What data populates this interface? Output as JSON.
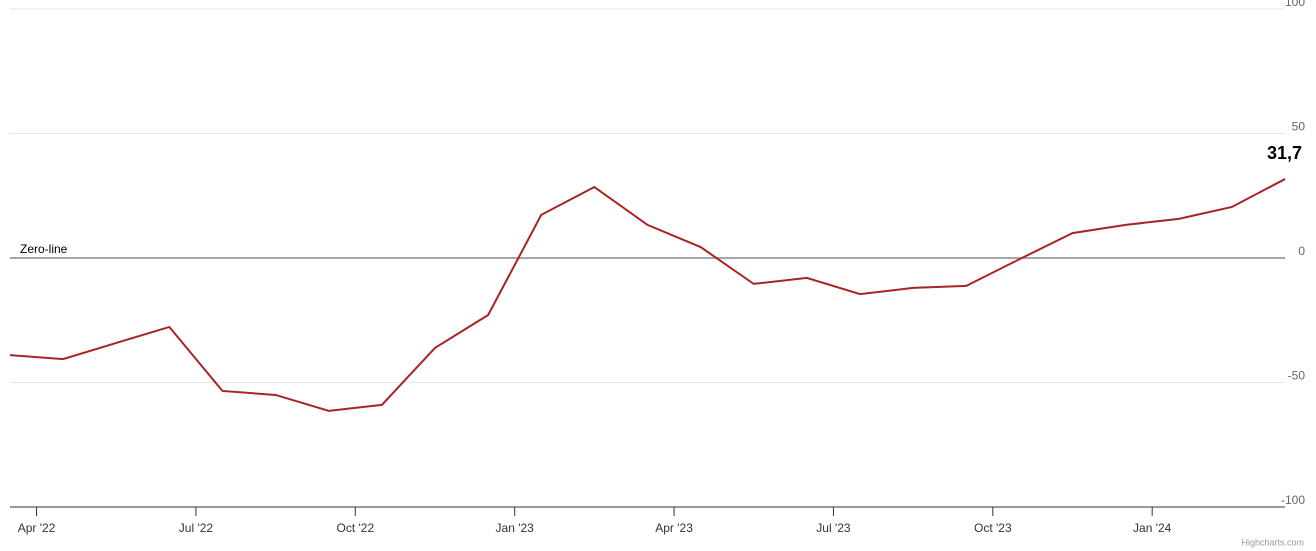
{
  "chart_data": {
    "type": "line",
    "x": [
      "2022-03",
      "2022-04",
      "2022-05",
      "2022-06",
      "2022-07",
      "2022-08",
      "2022-09",
      "2022-10",
      "2022-11",
      "2022-12",
      "2023-01",
      "2023-02",
      "2023-03",
      "2023-04",
      "2023-05",
      "2023-06",
      "2023-07",
      "2023-08",
      "2023-09",
      "2023-10",
      "2023-11",
      "2023-12",
      "2024-01",
      "2024-02",
      "2024-03"
    ],
    "series": [
      {
        "color": "#a82424",
        "values": [
          -39,
          -40.6,
          -34.1,
          -27.7,
          -53.4,
          -55,
          -61.4,
          -59,
          -36.1,
          -22.9,
          17.3,
          28.5,
          13.3,
          4.4,
          -10.4,
          -8,
          -14.5,
          -12,
          -11.2,
          -0.5,
          10,
          13.3,
          15.7,
          20.5,
          31.7
        ],
        "value_labels": [
          null,
          null,
          null,
          null,
          null,
          null,
          null,
          null,
          null,
          null,
          null,
          null,
          null,
          null,
          null,
          null,
          null,
          null,
          null,
          null,
          null,
          null,
          null,
          null,
          "31,7"
        ]
      }
    ],
    "xlim": [
      "2022-03",
      "2024-03"
    ],
    "xticks": [
      {
        "value": "2022-04",
        "label": "Apr '22"
      },
      {
        "value": "2022-07",
        "label": "Jul '22"
      },
      {
        "value": "2022-10",
        "label": "Oct '22"
      },
      {
        "value": "2023-01",
        "label": "Jan '23"
      },
      {
        "value": "2023-04",
        "label": "Apr '23"
      },
      {
        "value": "2023-07",
        "label": "Jul '23"
      },
      {
        "value": "2023-10",
        "label": "Oct '23"
      },
      {
        "value": "2024-01",
        "label": "Jan '24"
      }
    ],
    "ylim": [
      -100,
      100
    ],
    "yticks": [
      100,
      50,
      0,
      -50,
      -100
    ],
    "grid": true,
    "plot_lines": [
      {
        "value": 0,
        "label": "Zero-line"
      }
    ],
    "credits": "Highcharts.com"
  }
}
